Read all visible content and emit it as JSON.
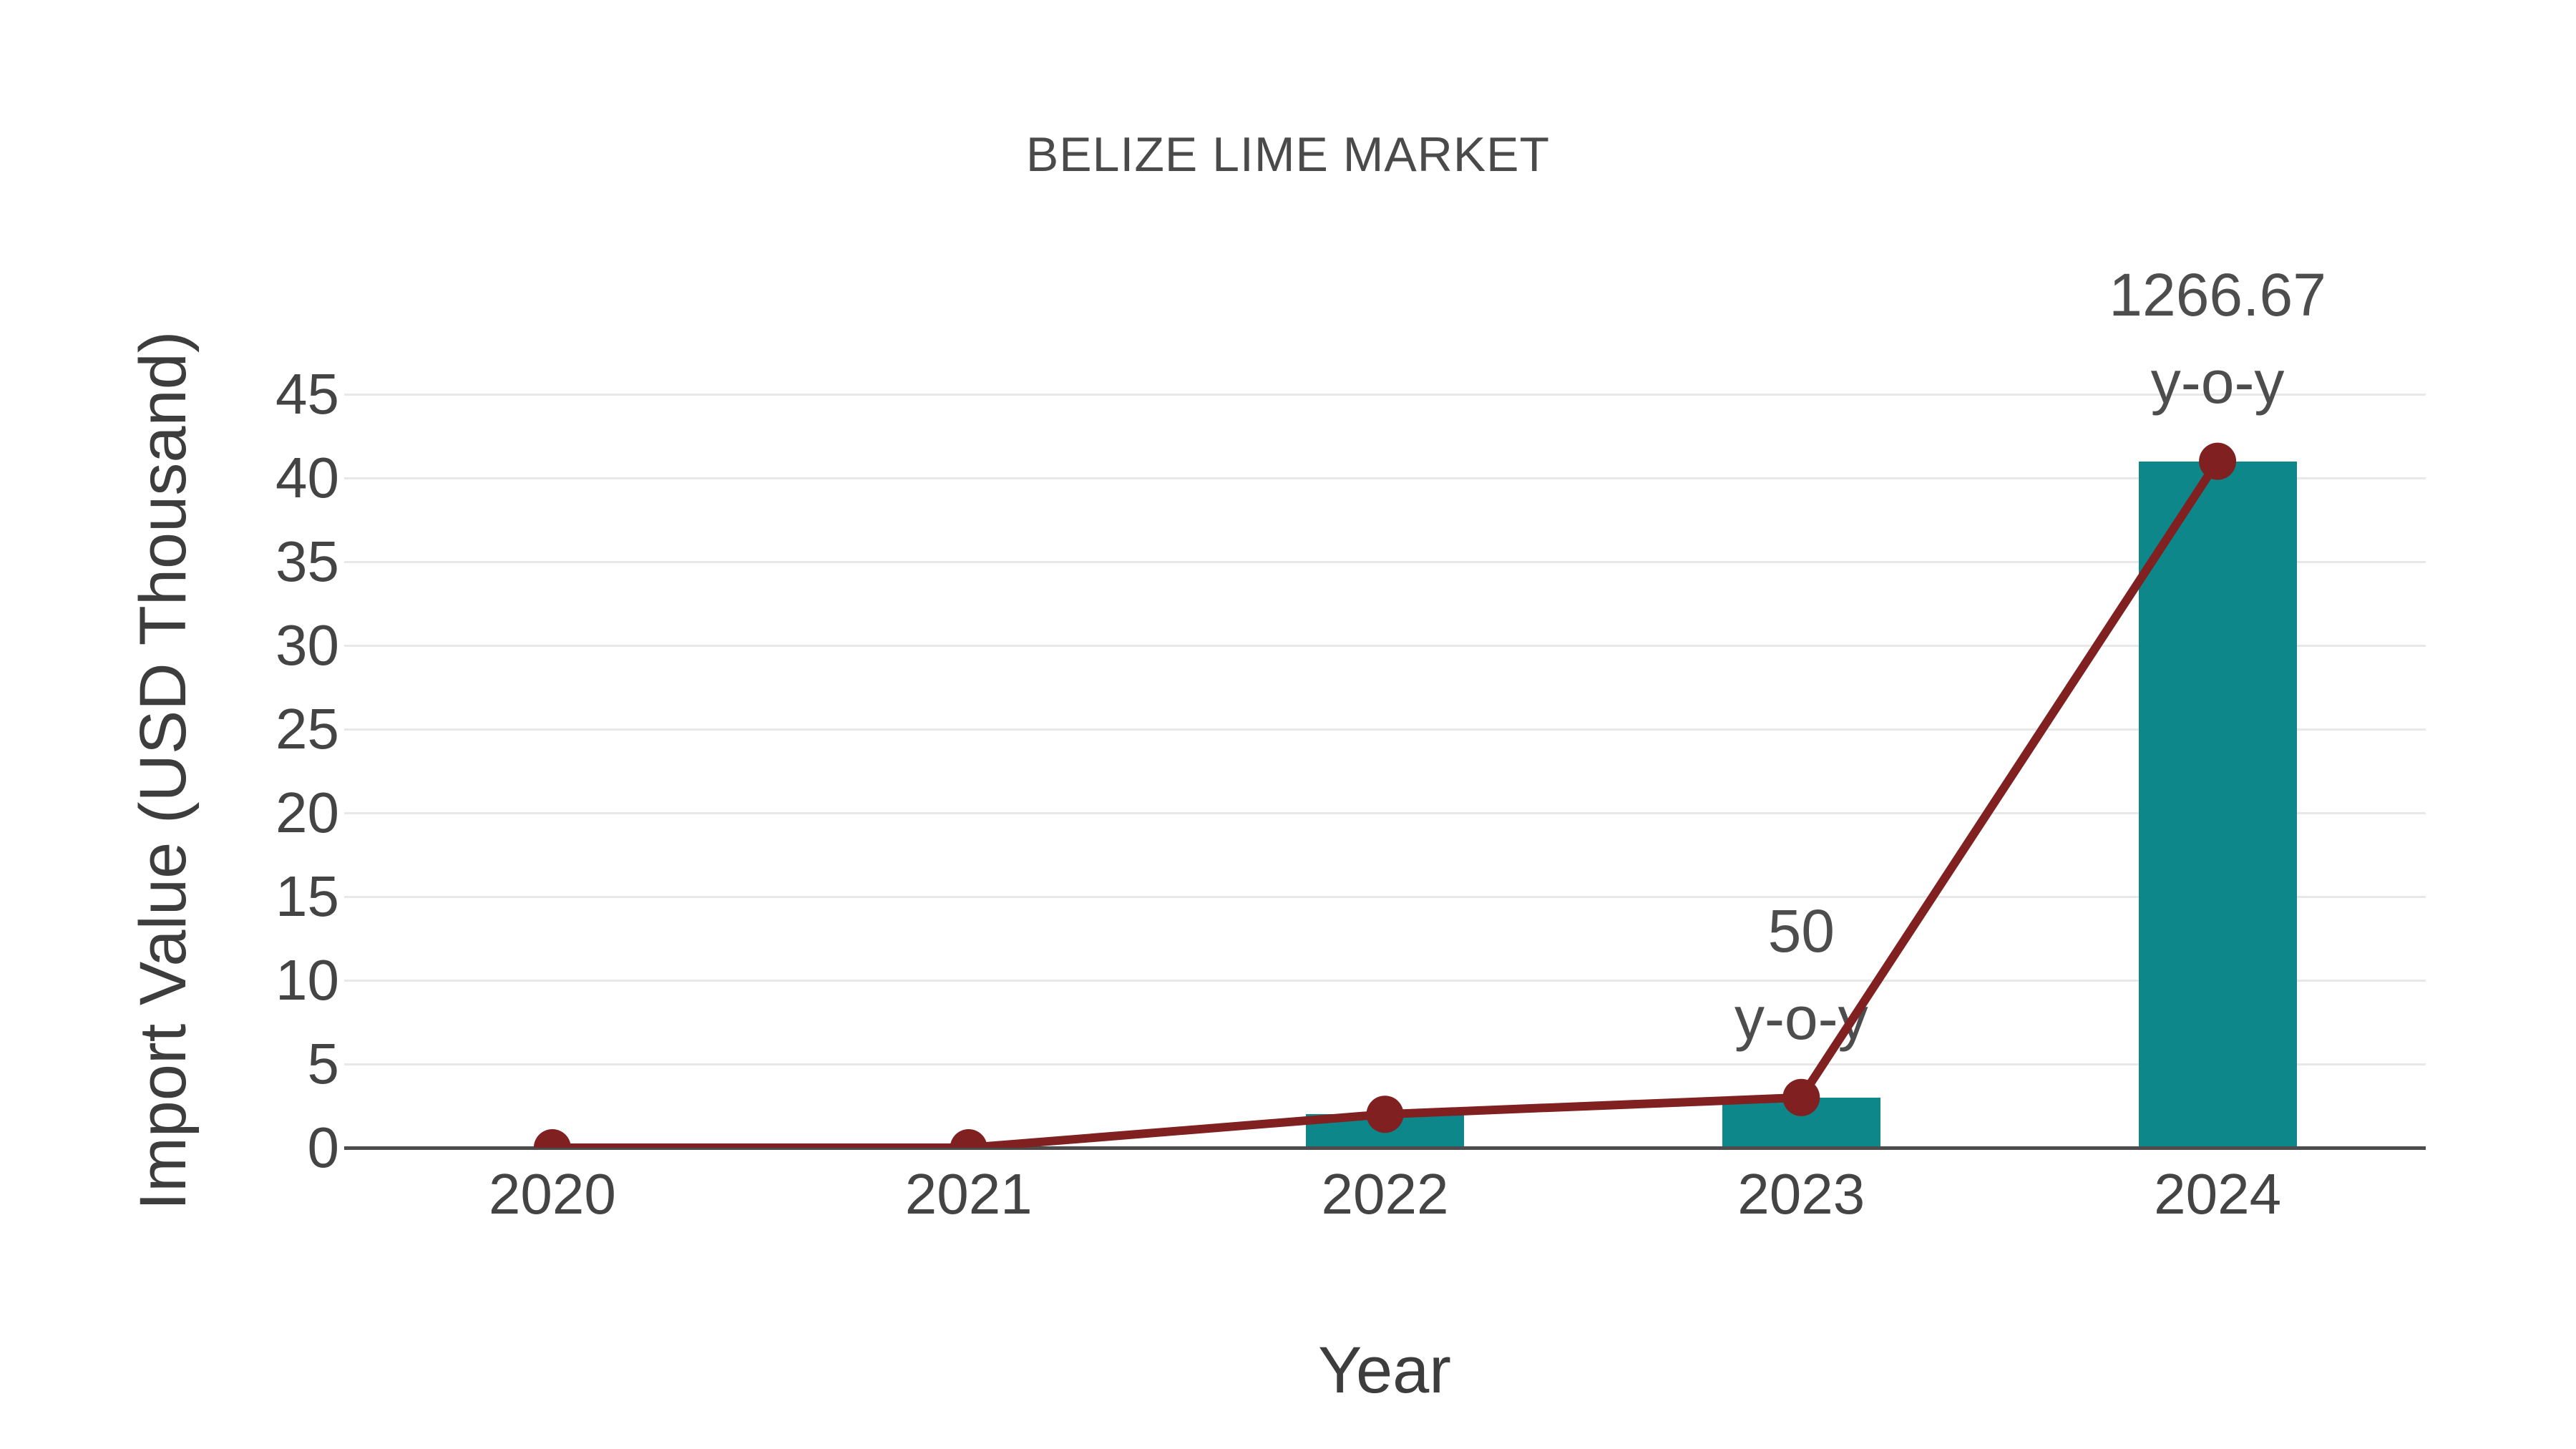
{
  "title": "BELIZE LIME MARKET",
  "colors": {
    "bar_teal": "#0d878a",
    "line_maroon": "#802020",
    "gridline": "#e8e8e8",
    "axis_line": "#4d4d4d",
    "title_text": "#4a4a4a",
    "tick_text": "#444444",
    "axis_title_text": "#3d3d3d",
    "annotation_text": "#4d4d4d",
    "background": "#ffffff"
  },
  "chart_data": {
    "type": "bar",
    "subtype": "bar-with-line-overlay",
    "title": "BELIZE LIME MARKET",
    "xlabel": "Year",
    "ylabel": "Import Value (USD Thousand)",
    "categories": [
      "2020",
      "2021",
      "2022",
      "2023",
      "2024"
    ],
    "series": [
      {
        "name": "Import Value (bars)",
        "type": "bar",
        "values": [
          0,
          0,
          2,
          3,
          41
        ]
      },
      {
        "name": "Import Value (line)",
        "type": "line",
        "values": [
          0,
          0,
          2,
          3,
          41
        ]
      }
    ],
    "annotations": [
      {
        "category": "2023",
        "lines": [
          "50",
          "y-o-y"
        ]
      },
      {
        "category": "2024",
        "lines": [
          "1266.67",
          "y-o-y"
        ]
      }
    ],
    "ylim": [
      0,
      45
    ],
    "yticks": [
      0,
      5,
      10,
      15,
      20,
      25,
      30,
      35,
      40,
      45
    ],
    "grid": "horizontal",
    "legend": "none"
  }
}
